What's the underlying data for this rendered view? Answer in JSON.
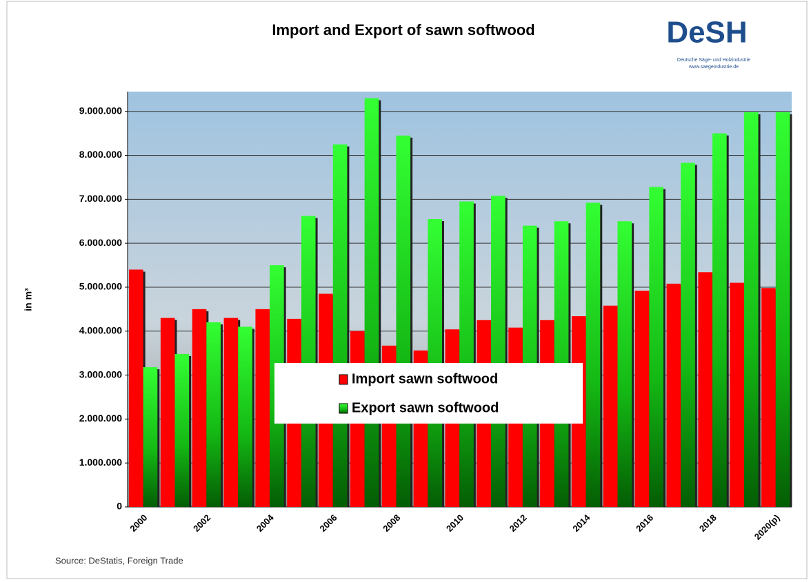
{
  "chart_data": {
    "type": "bar",
    "title": "Import and Export of sawn softwood",
    "y_label": "in m³",
    "source": "Source: DeStatis, Foreign Trade",
    "categories": [
      "2000",
      null,
      "2002",
      null,
      "2004",
      null,
      "2006",
      null,
      "2008",
      null,
      "2010",
      null,
      "2012",
      null,
      "2014",
      null,
      "2016",
      null,
      "2018",
      null,
      "2020(p)"
    ],
    "series": [
      {
        "name": "Import sawn softwood",
        "color": "#ff0000",
        "values": [
          5400000,
          4300000,
          4500000,
          4300000,
          4500000,
          4280000,
          4850000,
          4000000,
          3670000,
          3560000,
          4040000,
          4250000,
          4080000,
          4250000,
          4340000,
          4580000,
          4920000,
          5080000,
          5340000,
          5100000,
          4980000
        ]
      },
      {
        "name": "Export sawn softwood",
        "color": "#22ee22",
        "values": [
          3180000,
          3480000,
          4200000,
          4100000,
          5500000,
          6620000,
          8250000,
          9300000,
          8450000,
          6550000,
          6950000,
          7080000,
          6400000,
          6500000,
          6920000,
          6500000,
          7280000,
          7830000,
          8500000,
          8980000,
          8980000
        ]
      }
    ],
    "ylim": [
      0,
      9450000
    ],
    "yticks": [
      0,
      {
        "value": 1000000,
        "label": "1.000.000"
      },
      {
        "value": 2000000,
        "label": "2.000.000"
      },
      {
        "value": 3000000,
        "label": "3.000.000"
      },
      {
        "value": 4000000,
        "label": "4.000.000"
      },
      {
        "value": 5000000,
        "label": "5.000.000"
      },
      {
        "value": 6000000,
        "label": "6.000.000"
      },
      {
        "value": 7000000,
        "label": "7.000.000"
      },
      {
        "value": 8000000,
        "label": "8.000.000"
      },
      {
        "value": 9000000,
        "label": "9.000.000"
      }
    ],
    "grid": true
  },
  "logo": {
    "text": "DeSH",
    "subtitle": "Deutsche Säge- und Holzindustrie",
    "url": "www.saegeindustrie.de"
  }
}
